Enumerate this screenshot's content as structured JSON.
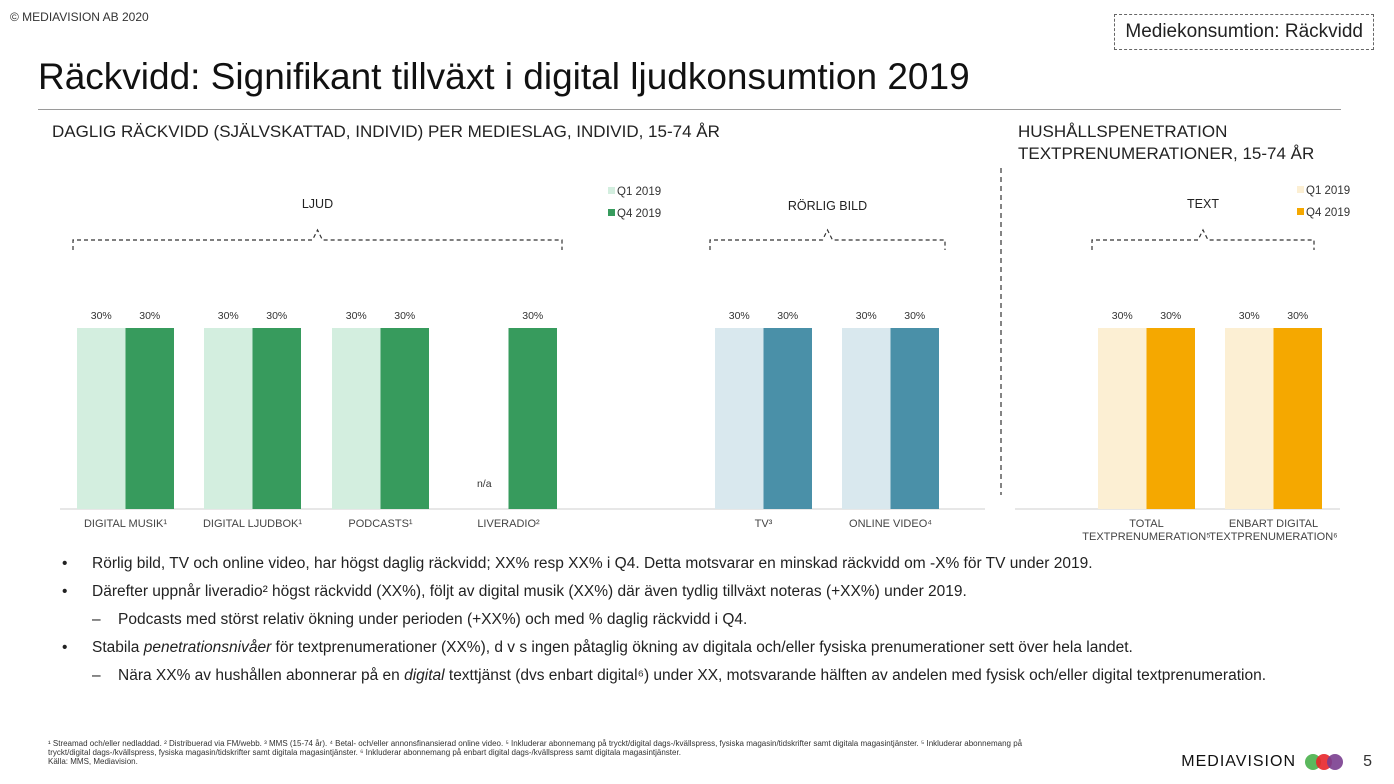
{
  "header": {
    "copyright": "© MEDIAVISION AB 2020",
    "section_tag": "Mediekonsumtion: Räckvidd",
    "title": "Räckvidd: Signifikant tillväxt i digital ljudkonsumtion 2019"
  },
  "left_panel": {
    "subtitle": "DAGLIG RÄCKVIDD (SJÄLVSKATTAD, INDIVID) PER MEDIESLAG, INDIVID, 15-74 ÅR"
  },
  "right_panel": {
    "subtitle_line1": "HUSHÅLLSPENETRATION",
    "subtitle_line2": "TEXTPRENUMERATIONER, 15-74 ÅR"
  },
  "chart_data": {
    "type": "bar",
    "value_unit": "%",
    "legends": [
      {
        "group": "ljud",
        "entries": [
          {
            "label": "Q1 2019",
            "color": "#d3eedf"
          },
          {
            "label": "Q4 2019",
            "color": "#379b5d"
          }
        ]
      },
      {
        "group": "text",
        "entries": [
          {
            "label": "Q1 2019",
            "color": "#fcefd3"
          },
          {
            "label": "Q4 2019",
            "color": "#f5a800"
          }
        ]
      }
    ],
    "groups": [
      {
        "id": "ljud",
        "label": "LJUD"
      },
      {
        "id": "rorlig",
        "label": "RÖRLIG BILD"
      },
      {
        "id": "text",
        "label": "TEXT"
      }
    ],
    "categories": [
      {
        "label": "DIGITAL MUSIK¹",
        "group": "ljud",
        "colors": [
          "#d3eedf",
          "#379b5d"
        ],
        "bars": [
          {
            "series": "Q1 2019",
            "value": 30,
            "label": "30%"
          },
          {
            "series": "Q4 2019",
            "value": 30,
            "label": "30%"
          }
        ]
      },
      {
        "label": "DIGITAL LJUDBOK¹",
        "group": "ljud",
        "colors": [
          "#d3eedf",
          "#379b5d"
        ],
        "bars": [
          {
            "series": "Q1 2019",
            "value": 30,
            "label": "30%"
          },
          {
            "series": "Q4 2019",
            "value": 30,
            "label": "30%"
          }
        ]
      },
      {
        "label": "PODCASTS¹",
        "group": "ljud",
        "colors": [
          "#d3eedf",
          "#379b5d"
        ],
        "bars": [
          {
            "series": "Q1 2019",
            "value": 30,
            "label": "30%"
          },
          {
            "series": "Q4 2019",
            "value": 30,
            "label": "30%"
          }
        ]
      },
      {
        "label": "LIVERADIO²",
        "group": "ljud",
        "colors": [
          "#d3eedf",
          "#379b5d"
        ],
        "bars": [
          {
            "series": "Q1 2019",
            "value": null,
            "label": "n/a"
          },
          {
            "series": "Q4 2019",
            "value": 30,
            "label": "30%"
          }
        ]
      },
      {
        "label": "TV³",
        "group": "rorlig",
        "colors": [
          "#d9e8ee",
          "#4a90a8"
        ],
        "bars": [
          {
            "series": "Q1 2019",
            "value": 30,
            "label": "30%"
          },
          {
            "series": "Q4 2019",
            "value": 30,
            "label": "30%"
          }
        ]
      },
      {
        "label": "ONLINE VIDEO⁴",
        "group": "rorlig",
        "colors": [
          "#d9e8ee",
          "#4a90a8"
        ],
        "bars": [
          {
            "series": "Q1 2019",
            "value": 30,
            "label": "30%"
          },
          {
            "series": "Q4 2019",
            "value": 30,
            "label": "30%"
          }
        ]
      },
      {
        "label": "TOTAL TEXTPRENUMERATION⁵",
        "label_lines": [
          "TOTAL",
          "TEXTPRENUMERATION⁵"
        ],
        "group": "text",
        "colors": [
          "#fcefd3",
          "#f5a800"
        ],
        "bars": [
          {
            "series": "Q1 2019",
            "value": 30,
            "label": "30%"
          },
          {
            "series": "Q4 2019",
            "value": 30,
            "label": "30%"
          }
        ]
      },
      {
        "label": "ENBART DIGITAL TEXTPRENUMERATION⁶",
        "label_lines": [
          "ENBART DIGITAL",
          "TEXTPRENUMERATION⁶"
        ],
        "group": "text",
        "colors": [
          "#fcefd3",
          "#f5a800"
        ],
        "bars": [
          {
            "series": "Q1 2019",
            "value": 30,
            "label": "30%"
          },
          {
            "series": "Q4 2019",
            "value": 30,
            "label": "30%"
          }
        ]
      }
    ],
    "ylim": [
      0,
      30
    ],
    "grid": false,
    "legend_position": "top-right of each panel"
  },
  "bullets": [
    {
      "marker": "•",
      "text": "Rörlig bild, TV och online video, har högst daglig räckvidd; XX% resp XX% i Q4. Detta motsvarar en minskad räckvidd om -X% för TV under 2019."
    },
    {
      "marker": "•",
      "text": "Därefter uppnår liveradio² högst räckvidd (XX%), följt av digital musik (XX%) där även tydlig tillväxt noteras (+XX%) under 2019."
    },
    {
      "marker": "–",
      "sub": true,
      "text": "Podcasts med störst relativ ökning under perioden (+XX%) och med % daglig räckvidd i Q4."
    },
    {
      "marker": "•",
      "pre": "Stabila ",
      "em": "penetrationsnivåer",
      "post": " för textprenumerationer (XX%), d v s ingen påtaglig ökning av digitala och/eller fysiska prenumerationer sett över hela landet."
    },
    {
      "marker": "–",
      "sub": true,
      "pre": "Nära XX% av hushållen abonnerar på en ",
      "em": "digital",
      "post": " texttjänst (dvs enbart digital⁶) under XX, motsvarande hälften av andelen med fysisk och/eller digital textprenumeration."
    }
  ],
  "footnotes": {
    "line1": "¹ Streamad och/eller nedladdad. ² Distribuerad via FM/webb. ³ MMS (15-74 år). ⁴ Betal- och/eller annonsfinansierad online video. ⁵ Inkluderar abonnemang på tryckt/digital dags-/kvällspress, fysiska magasin/tidskrifter samt digitala magasintjänster. ⁵ Inkluderar abonnemang på",
    "line2": "tryckt/digital dags-/kvällspress, fysiska magasin/tidskrifter samt digitala magasintjänster. ⁶ Inkluderar abonnemang på enbart digital dags-/kvällspress samt digitala magasintjänster.",
    "line3": "Källa: MMS, Mediavision."
  },
  "footer": {
    "brand": "MEDIAVISION",
    "page_number": "5",
    "logo_colors": [
      "#5bb85d",
      "#e8262a",
      "#7a3e8f"
    ]
  }
}
